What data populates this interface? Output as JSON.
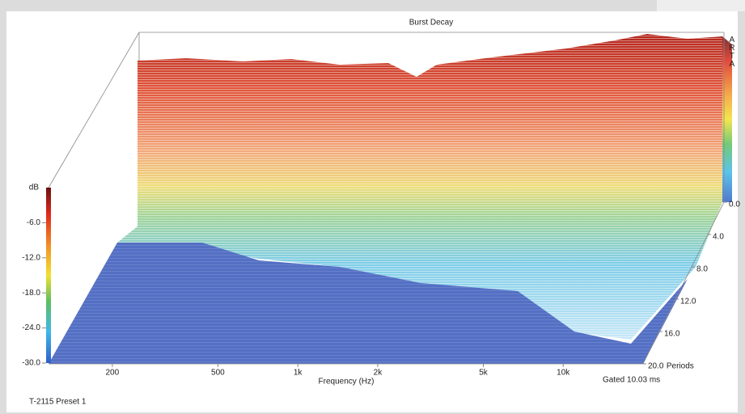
{
  "chart_data": {
    "type": "waterfall",
    "title": "Burst Decay",
    "brand": "ARTA",
    "y_label": "dB",
    "ylim": [
      -30,
      0
    ],
    "yticks": [
      {
        "value": -6,
        "label": "-6.0"
      },
      {
        "value": -12,
        "label": "-12.0"
      },
      {
        "value": -18,
        "label": "-18.0"
      },
      {
        "value": -24,
        "label": "-24.0"
      },
      {
        "value": -30,
        "label": "-30.0"
      }
    ],
    "x_label": "Frequency (Hz)",
    "xscale": "log",
    "xlim": [
      115,
      20000
    ],
    "xticks": [
      200,
      500,
      {
        "value": 1000,
        "label": "1k"
      },
      {
        "value": 2000,
        "label": "2k"
      },
      {
        "value": 5000,
        "label": "5k"
      },
      {
        "value": 10000,
        "label": "10k"
      }
    ],
    "z_label": "Periods",
    "zlim": [
      0,
      20
    ],
    "zticks": [
      {
        "value": 0,
        "label": "0.0"
      },
      {
        "value": 4,
        "label": "4.0"
      },
      {
        "value": 8,
        "label": "8.0"
      },
      {
        "value": 12,
        "label": "12.0"
      },
      {
        "value": 16,
        "label": "16.0"
      },
      {
        "value": 20,
        "label": "20.0"
      }
    ],
    "gate_note": "Gated 10.03 ms",
    "footer": "T-2115 Preset 1"
  }
}
